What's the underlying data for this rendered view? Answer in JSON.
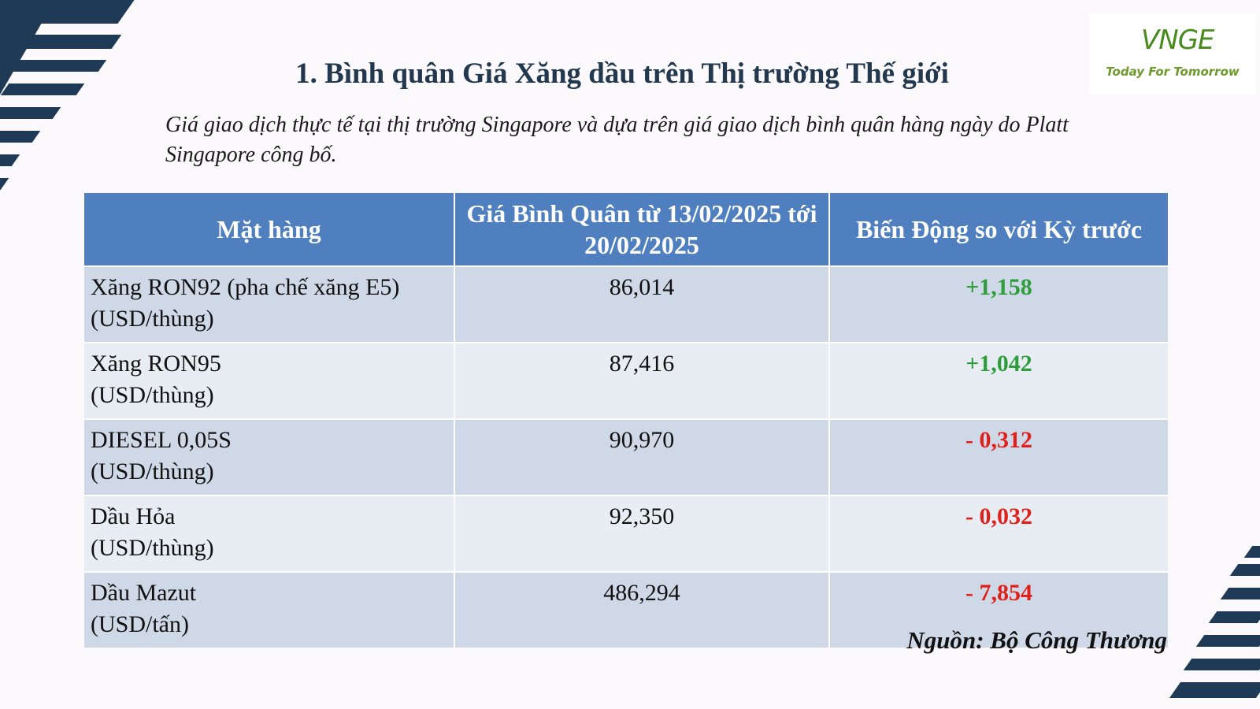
{
  "title": "1. Bình quân Giá Xăng dầu trên Thị trường Thế giới",
  "subtitle": "Giá giao dịch thực tế tại thị trường Singapore và dựa trên giá giao dịch bình quân hàng ngày do Platt Singapore công bố.",
  "logo": {
    "mark": "VNGE",
    "tagline": "Today For Tomorrow"
  },
  "table": {
    "headers": [
      "Mặt hàng",
      "Giá Bình Quân từ 13/02/2025 tới 20/02/2025",
      "Biến Động so với Kỳ trước"
    ],
    "rows": [
      {
        "item": "Xăng RON92 (pha chế xăng E5)",
        "unit": "(USD/thùng)",
        "price": "86,014",
        "change": "+1,158",
        "direction": "up"
      },
      {
        "item": "Xăng RON95",
        "unit": "(USD/thùng)",
        "price": "87,416",
        "change": "+1,042",
        "direction": "up"
      },
      {
        "item": "DIESEL 0,05S",
        "unit": "(USD/thùng)",
        "price": "90,970",
        "change": "- 0,312",
        "direction": "down"
      },
      {
        "item": "Dầu Hỏa",
        "unit": "(USD/thùng)",
        "price": "92,350",
        "change": "- 0,032",
        "direction": "down"
      },
      {
        "item": "Dầu Mazut",
        "unit": "(USD/tấn)",
        "price": "486,294",
        "change": "- 7,854",
        "direction": "down"
      }
    ]
  },
  "source": "Nguồn: Bộ Công Thương",
  "colors": {
    "up": "#2e9e3c",
    "down": "#e0201a",
    "header": "#4f7fbf",
    "accent_dark": "#1f3a57"
  }
}
